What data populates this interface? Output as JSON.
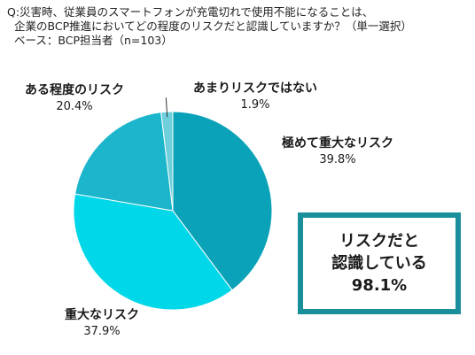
{
  "question": {
    "line1": "Q:災害時、従業員のスマートフォンが充電切れで使用不能になることは、",
    "line2": "企業のBCP推進においてどの程度のリスクだと認識していますか？（単一選択）",
    "base": "ベース：BCP担当者（n=103）"
  },
  "chart_data": {
    "type": "pie",
    "slices": [
      {
        "label": "極めて重大なリスク",
        "value": 39.8,
        "value_label": "39.8%",
        "color": "#0aa2b8"
      },
      {
        "label": "重大なリスク",
        "value": 37.9,
        "value_label": "37.9%",
        "color": "#00d7e8"
      },
      {
        "label": "ある程度のリスク",
        "value": 20.4,
        "value_label": "20.4%",
        "color": "#1bb5cc"
      },
      {
        "label": "あまりリスクではない",
        "value": 1.9,
        "value_label": "1.9%",
        "color": "#6fd0dc"
      }
    ],
    "start": "12 o'clock",
    "direction": "clockwise"
  },
  "callout": {
    "line1": "リスクだと",
    "line2": "認識している",
    "value": "98.1%",
    "border_color": "#1a8f9c"
  }
}
